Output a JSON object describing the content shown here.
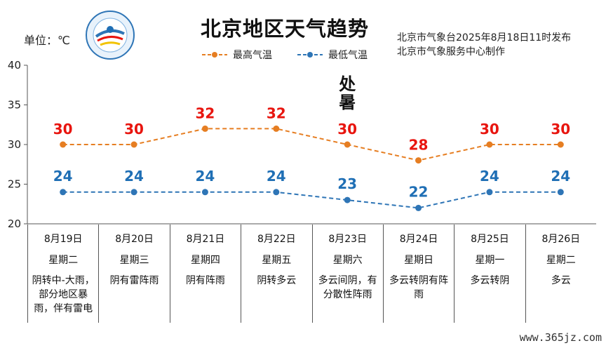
{
  "header": {
    "unit": "单位：℃",
    "title": "北京地区天气趋势",
    "issuer_line1": "北京市气象台2025年8月18日11时发布",
    "issuer_line2": "北京市气象服务中心制作",
    "logo_name": "beijing-meteorological-service-logo"
  },
  "colors": {
    "high": "#e67e22",
    "low": "#2e75b6",
    "high_label": "#e8150f",
    "low_label": "#1f6fb5",
    "axis": "#555555"
  },
  "chart_data": {
    "type": "line",
    "categories": [
      "8月19日",
      "8月20日",
      "8月21日",
      "8月22日",
      "8月23日",
      "8月24日",
      "8月25日",
      "8月26日"
    ],
    "series": [
      {
        "name": "最高气温",
        "values": [
          30,
          30,
          32,
          32,
          30,
          28,
          30,
          30
        ]
      },
      {
        "name": "最低气温",
        "values": [
          24,
          24,
          24,
          24,
          23,
          22,
          24,
          24
        ]
      }
    ],
    "ylim": [
      20,
      40
    ],
    "yticks": [
      20,
      25,
      30,
      35,
      40
    ],
    "legend": "top-center",
    "annotation": {
      "text": "处暑",
      "category": "8月23日"
    }
  },
  "table": {
    "weekdays": [
      "星期二",
      "星期三",
      "星期四",
      "星期五",
      "星期六",
      "星期日",
      "星期一",
      "星期二"
    ],
    "weather": [
      "阴转中-大雨，部分地区暴雨，伴有雷电",
      "阴有雷阵雨",
      "阴有阵雨",
      "阴转多云",
      "多云间阴，有分散性阵雨",
      "多云转阴有阵雨",
      "多云转阴",
      "多云"
    ]
  },
  "watermark": "www.365jz.com"
}
